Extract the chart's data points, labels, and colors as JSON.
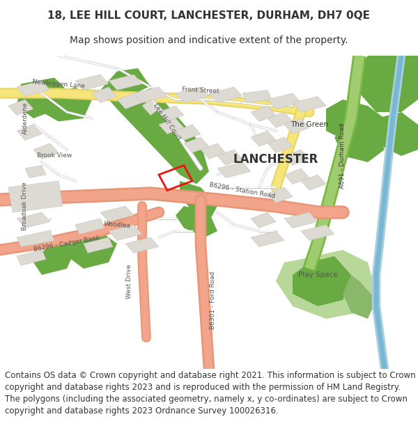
{
  "title_line1": "18, LEE HILL COURT, LANCHESTER, DURHAM, DH7 0QE",
  "title_line2": "Map shows position and indicative extent of the property.",
  "footer_text": "Contains OS data © Crown copyright and database right 2021. This information is subject to Crown copyright and database rights 2023 and is reproduced with the permission of HM Land Registry. The polygons (including the associated geometry, namely x, y co-ordinates) are subject to Crown copyright and database rights 2023 Ordnance Survey 100026316.",
  "title_fontsize": 11,
  "subtitle_fontsize": 10,
  "footer_fontsize": 8.5,
  "fig_width": 6.0,
  "fig_height": 6.25,
  "bg_color": "#ffffff",
  "map_bg": "#f7f5f2",
  "road_salmon": "#f2a58a",
  "road_yellow": "#f5e57a",
  "road_white": "#ffffff",
  "green_dark": "#6aaa42",
  "green_mid": "#89b86a",
  "green_light": "#b8d89a",
  "water_blue": "#aacfe0",
  "water_dark": "#78b8d2",
  "green_road_strip": "#7ab842",
  "building_fill": "#dddad4",
  "building_edge": "#c8c4bc",
  "plot_red": "#ee1111",
  "text_dark": "#333333",
  "text_mid": "#555555",
  "text_light": "#777777"
}
